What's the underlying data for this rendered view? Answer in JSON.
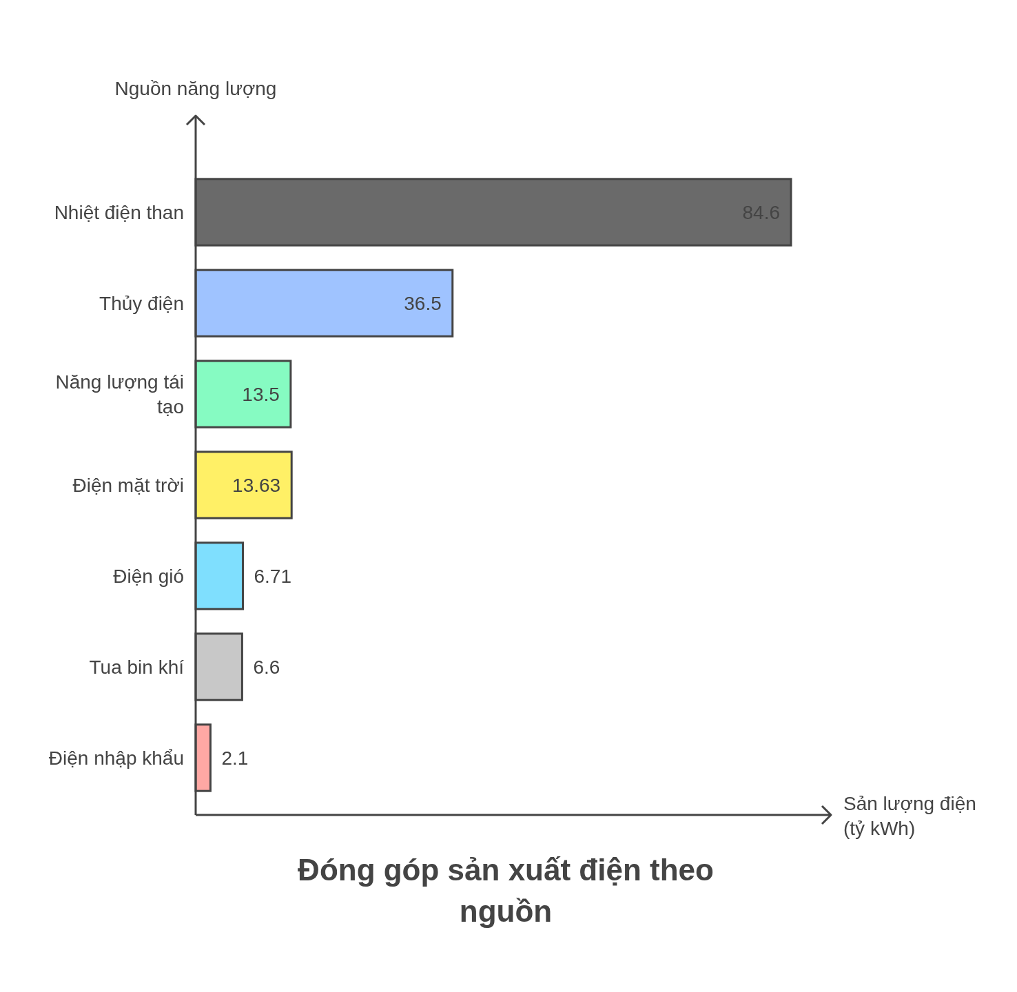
{
  "chart_data": {
    "type": "bar",
    "orientation": "horizontal",
    "title": "Đóng góp sản xuất điện theo nguồn",
    "xlabel": "Sản lượng điện (tỷ kWh)",
    "ylabel": "Nguồn năng lượng",
    "categories": [
      "Nhiệt điện than",
      "Thủy điện",
      "Năng lượng tái tạo",
      "Điện mặt trời",
      "Điện gió",
      "Tua bin khí",
      "Điện nhập khẩu"
    ],
    "values": [
      84.6,
      36.5,
      13.5,
      13.63,
      6.71,
      6.6,
      2.1
    ],
    "colors": [
      "#6a6a6a",
      "#9fc3ff",
      "#86fbc2",
      "#fff066",
      "#7fdffe",
      "#c8c8c8",
      "#ffa8a4"
    ],
    "data_labels": true
  }
}
